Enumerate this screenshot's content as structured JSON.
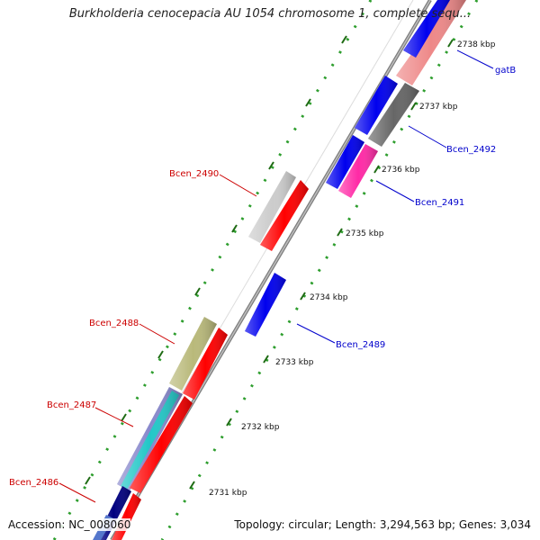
{
  "title": "Burkholderia cenocepacia AU 1054 chromosome 1, complete sequ...",
  "footer": {
    "accession": "Accession: NC_008060",
    "summary": "Topology: circular; Length: 3,294,563 bp; Genes: 3,034"
  },
  "colors": {
    "backbone": "#8a8a8a",
    "tick_major": "#2e7d1e",
    "tick_minor": "#2e9e2e",
    "gene_red": "#ff0000",
    "gene_blue": "#0000ee",
    "gene_lightgray": "#cccccc",
    "gene_darkgray": "#666666",
    "gene_pink": "#ff2aa6",
    "gene_salmon": "#ee8888",
    "gene_olive": "#b9b97a",
    "gene_teal": "#22c7c7",
    "label_red": "#cc0000",
    "label_blue": "#0000cc"
  },
  "scale_labels": [
    {
      "id": "2738",
      "text": "2738 kbp"
    },
    {
      "id": "2737",
      "text": "2737 kbp"
    },
    {
      "id": "2736",
      "text": "2736 kbp"
    },
    {
      "id": "2735",
      "text": "2735 kbp"
    },
    {
      "id": "2734",
      "text": "2734 kbp"
    },
    {
      "id": "2733",
      "text": "2733 kbp"
    },
    {
      "id": "2732",
      "text": "2732 kbp"
    },
    {
      "id": "2731",
      "text": "2731 kbp"
    }
  ],
  "gene_labels": [
    {
      "id": "gatB",
      "text": "gatB",
      "color": "#0000cc"
    },
    {
      "id": "Bcen_2492",
      "text": "Bcen_2492",
      "color": "#0000cc"
    },
    {
      "id": "Bcen_2491",
      "text": "Bcen_2491",
      "color": "#0000cc"
    },
    {
      "id": "Bcen_2490",
      "text": "Bcen_2490",
      "color": "#cc0000"
    },
    {
      "id": "Bcen_2489",
      "text": "Bcen_2489",
      "color": "#0000cc"
    },
    {
      "id": "Bcen_2488",
      "text": "Bcen_2488",
      "color": "#cc0000"
    },
    {
      "id": "Bcen_2487",
      "text": "Bcen_2487",
      "color": "#cc0000"
    },
    {
      "id": "Bcen_2486",
      "text": "Bcen_2486",
      "color": "#cc0000"
    }
  ]
}
